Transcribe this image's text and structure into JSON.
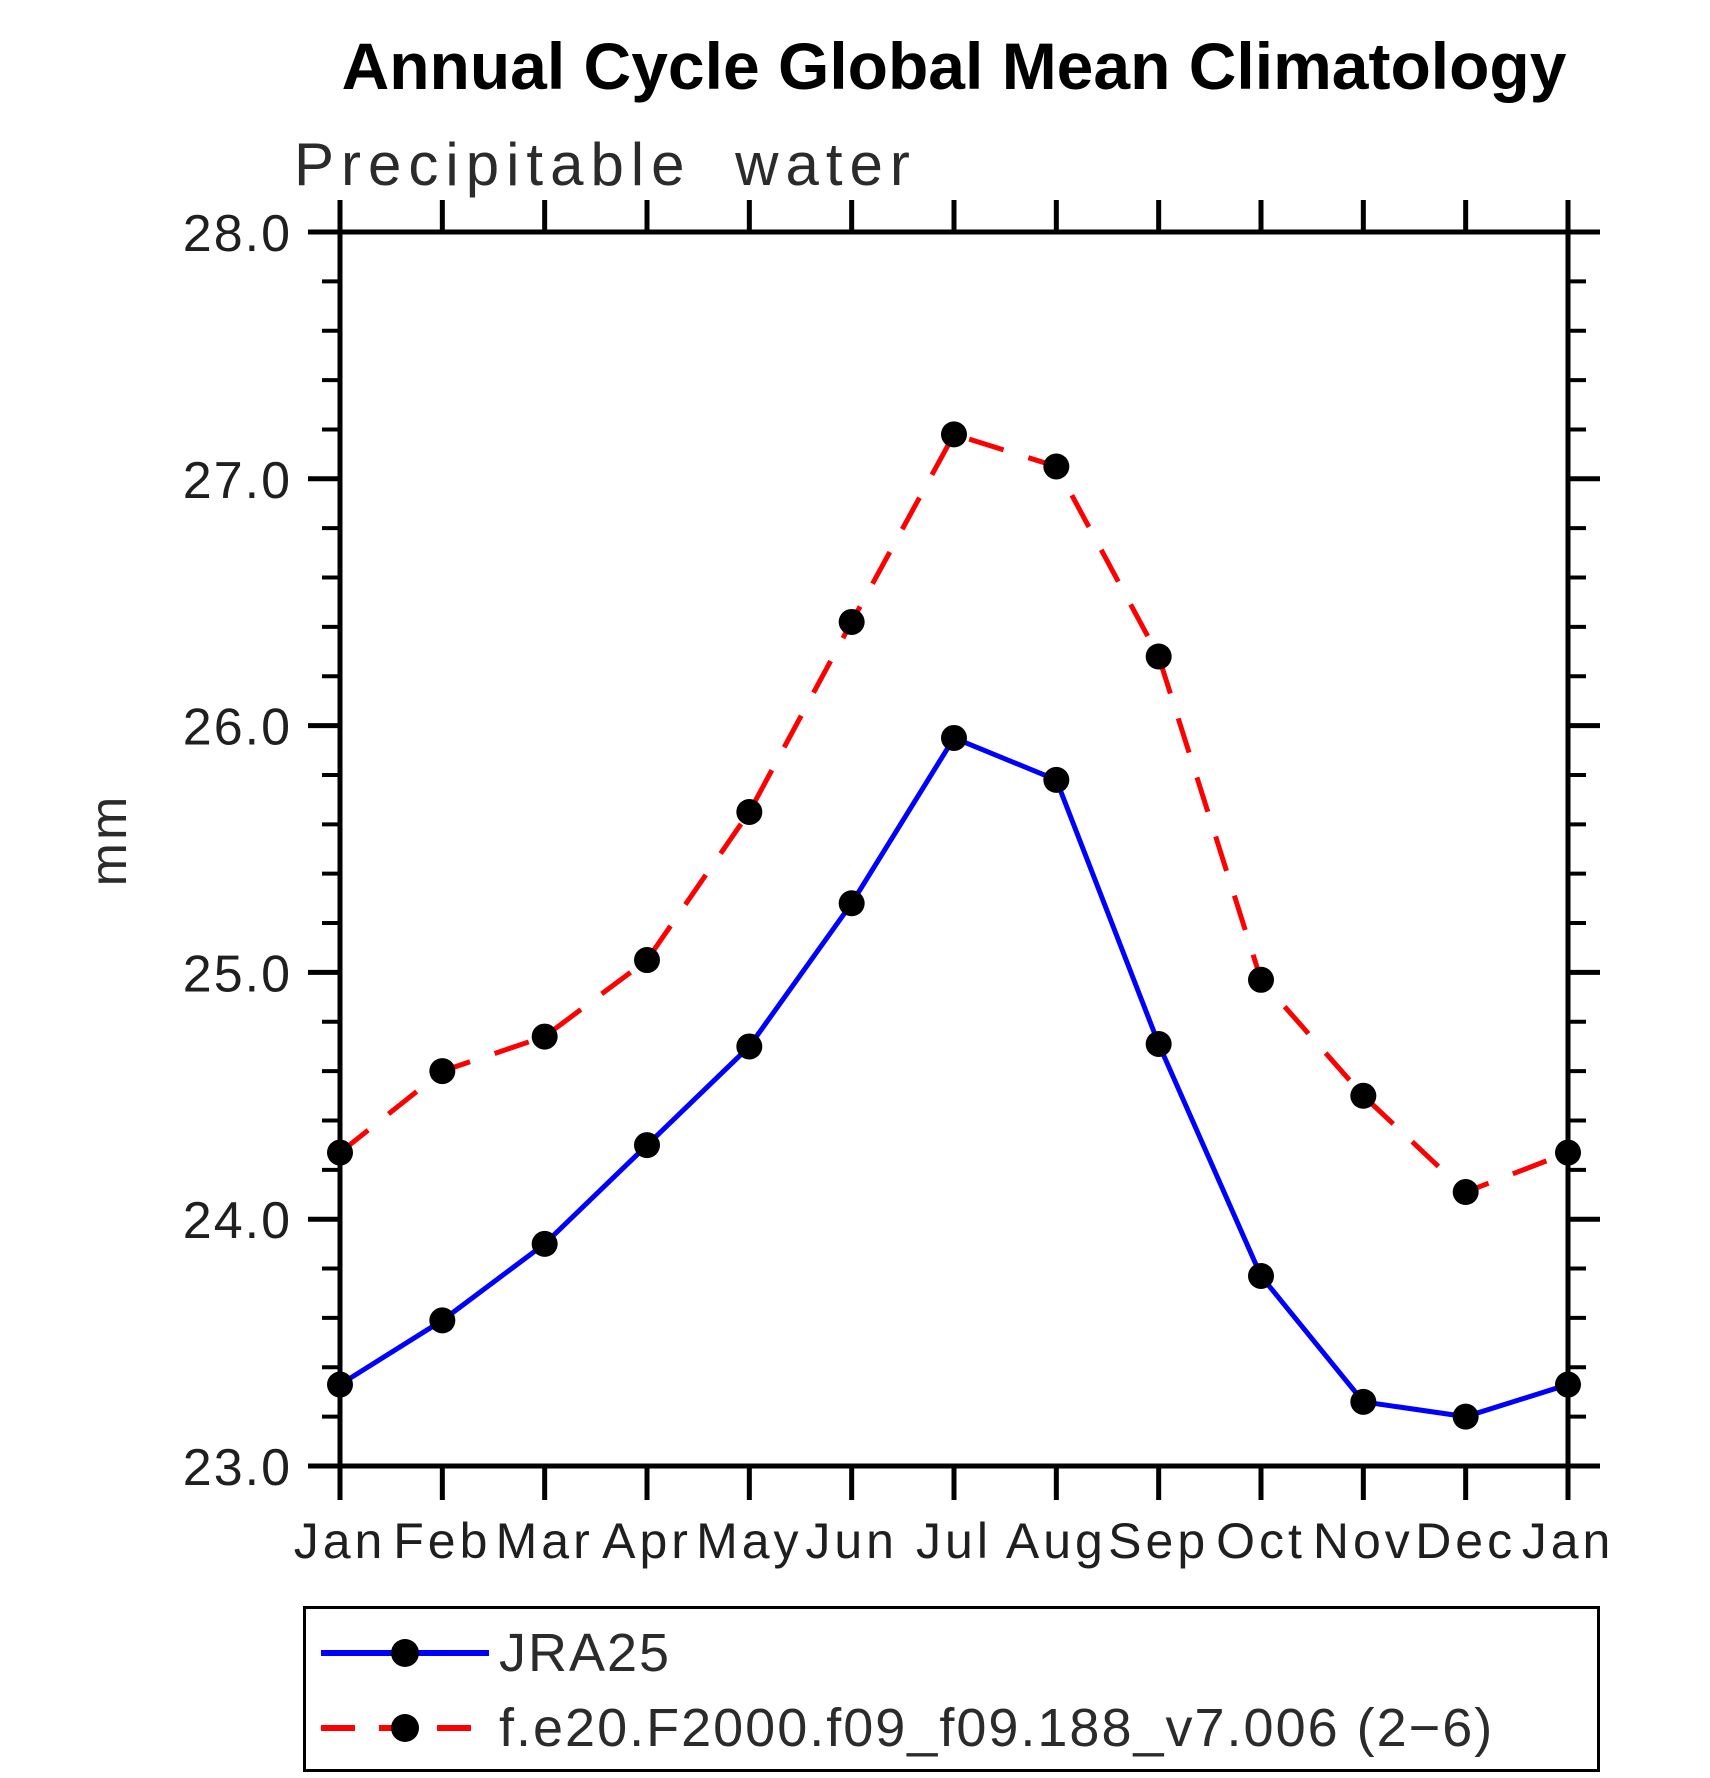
{
  "chart": {
    "title": "Annual Cycle Global Mean Climatology",
    "subtitle": "Precipitable water",
    "ylabel": "mm"
  },
  "chart_data": {
    "type": "line",
    "title": "Annual Cycle Global Mean Climatology",
    "subtitle": "Precipitable water",
    "xlabel": "",
    "ylabel": "mm",
    "categories": [
      "Jan",
      "Feb",
      "Mar",
      "Apr",
      "May",
      "Jun",
      "Jul",
      "Aug",
      "Sep",
      "Oct",
      "Nov",
      "Dec",
      "Jan"
    ],
    "ylim": [
      23.0,
      28.0
    ],
    "ytick_interval": 1.0,
    "ytick_labels": [
      "23.0",
      "24.0",
      "25.0",
      "26.0",
      "27.0",
      "28.0"
    ],
    "yminor_interval": 0.2,
    "grid": false,
    "legend_position": "bottom",
    "marker": {
      "shape": "circle",
      "color": "#000000",
      "radius": 13
    },
    "axis_color": "#000000",
    "series": [
      {
        "name": "JRA25",
        "color": "#0000ff",
        "line_style": "solid",
        "values": [
          23.33,
          23.59,
          23.9,
          24.3,
          24.7,
          25.28,
          25.95,
          25.78,
          24.71,
          23.77,
          23.26,
          23.2,
          23.33
        ]
      },
      {
        "name": "f.e20.F2000.f09_f09.188_v7.006 (2−6)",
        "color": "#ff0000",
        "line_style": "dashed",
        "values": [
          24.27,
          24.6,
          24.74,
          25.05,
          25.65,
          26.42,
          27.18,
          27.05,
          26.28,
          24.97,
          24.5,
          24.11,
          24.27
        ]
      }
    ]
  }
}
